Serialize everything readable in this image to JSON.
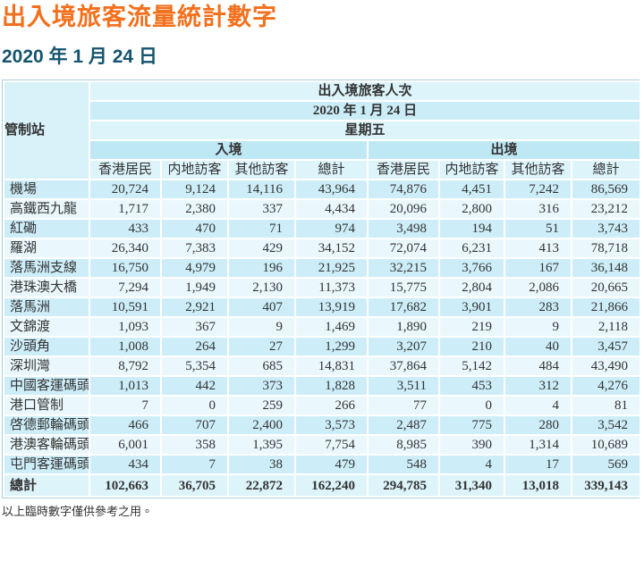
{
  "page": {
    "title": "出入境旅客流量統計數字",
    "date_heading": "2020 年 1 月 24 日",
    "footnote": "以上臨時數字僅供參考之用。"
  },
  "colors": {
    "title_orange": "#F3701D",
    "heading_teal": "#14546E",
    "row_cyan": "#CDEEF9",
    "row_light": "#EAF8FD",
    "header_light": "#DDF4FB",
    "header_mid": "#CBEDF8",
    "header_deep": "#BFE8F5",
    "grid_white": "#FFFFFF",
    "outer_border": "#A9CFDC",
    "text_dark": "#333333"
  },
  "table": {
    "corner_label": "管制站",
    "header": {
      "title": "出入境旅客人次",
      "date": "2020 年 1 月 24 日",
      "weekday": "星期五",
      "arrival": "入境",
      "departure": "出境",
      "sub_columns": [
        "香港居民",
        "内地訪客",
        "其他訪客",
        "總計"
      ]
    },
    "rows": [
      {
        "name": "機場",
        "values": [
          "20,724",
          "9,124",
          "14,116",
          "43,964",
          "74,876",
          "4,451",
          "7,242",
          "86,569"
        ]
      },
      {
        "name": "高鐵西九龍",
        "values": [
          "1,717",
          "2,380",
          "337",
          "4,434",
          "20,096",
          "2,800",
          "316",
          "23,212"
        ]
      },
      {
        "name": "紅磡",
        "values": [
          "433",
          "470",
          "71",
          "974",
          "3,498",
          "194",
          "51",
          "3,743"
        ]
      },
      {
        "name": "羅湖",
        "values": [
          "26,340",
          "7,383",
          "429",
          "34,152",
          "72,074",
          "6,231",
          "413",
          "78,718"
        ]
      },
      {
        "name": "落馬洲支線",
        "values": [
          "16,750",
          "4,979",
          "196",
          "21,925",
          "32,215",
          "3,766",
          "167",
          "36,148"
        ]
      },
      {
        "name": "港珠澳大橋",
        "values": [
          "7,294",
          "1,949",
          "2,130",
          "11,373",
          "15,775",
          "2,804",
          "2,086",
          "20,665"
        ]
      },
      {
        "name": "落馬洲",
        "values": [
          "10,591",
          "2,921",
          "407",
          "13,919",
          "17,682",
          "3,901",
          "283",
          "21,866"
        ]
      },
      {
        "name": "文錦渡",
        "values": [
          "1,093",
          "367",
          "9",
          "1,469",
          "1,890",
          "219",
          "9",
          "2,118"
        ]
      },
      {
        "name": "沙頭角",
        "values": [
          "1,008",
          "264",
          "27",
          "1,299",
          "3,207",
          "210",
          "40",
          "3,457"
        ]
      },
      {
        "name": "深圳灣",
        "values": [
          "8,792",
          "5,354",
          "685",
          "14,831",
          "37,864",
          "5,142",
          "484",
          "43,490"
        ]
      },
      {
        "name": "中國客運碼頭",
        "values": [
          "1,013",
          "442",
          "373",
          "1,828",
          "3,511",
          "453",
          "312",
          "4,276"
        ]
      },
      {
        "name": "港口管制",
        "values": [
          "7",
          "0",
          "259",
          "266",
          "77",
          "0",
          "4",
          "81"
        ]
      },
      {
        "name": "啓德郵輪碼頭",
        "values": [
          "466",
          "707",
          "2,400",
          "3,573",
          "2,487",
          "775",
          "280",
          "3,542"
        ]
      },
      {
        "name": "港澳客輪碼頭",
        "values": [
          "6,001",
          "358",
          "1,395",
          "7,754",
          "8,985",
          "390",
          "1,314",
          "10,689"
        ]
      },
      {
        "name": "屯門客運碼頭",
        "values": [
          "434",
          "7",
          "38",
          "479",
          "548",
          "4",
          "17",
          "569"
        ]
      }
    ],
    "total_row": {
      "name": "總計",
      "values": [
        "102,663",
        "36,705",
        "22,872",
        "162,240",
        "294,785",
        "31,340",
        "13,018",
        "339,143"
      ]
    }
  }
}
